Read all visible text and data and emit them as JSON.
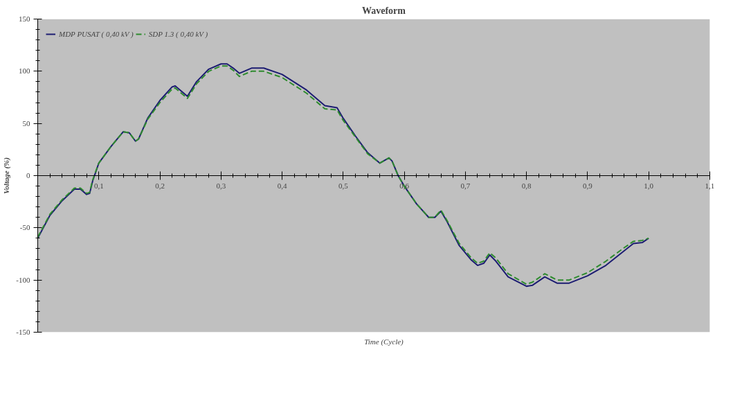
{
  "chart_data": {
    "type": "line",
    "title": "Waveform",
    "xlabel": "Time (Cycle)",
    "ylabel": "Voltage (%)",
    "x": [
      0,
      0.02,
      0.04,
      0.06,
      0.07,
      0.08,
      0.085,
      0.09,
      0.1,
      0.12,
      0.14,
      0.15,
      0.16,
      0.165,
      0.18,
      0.2,
      0.22,
      0.225,
      0.235,
      0.245,
      0.26,
      0.28,
      0.3,
      0.31,
      0.32,
      0.33,
      0.35,
      0.37,
      0.4,
      0.44,
      0.47,
      0.49,
      0.5,
      0.52,
      0.54,
      0.56,
      0.575,
      0.58,
      0.59,
      0.6,
      0.62,
      0.64,
      0.65,
      0.66,
      0.67,
      0.69,
      0.71,
      0.72,
      0.73,
      0.74,
      0.75,
      0.77,
      0.8,
      0.81,
      0.83,
      0.85,
      0.87,
      0.9,
      0.93,
      0.96,
      0.975,
      0.99,
      1.0
    ],
    "series": [
      {
        "name": "MDP PUSAT ( 0,40 kV )",
        "color": "#1c1c72",
        "line_style": "solid",
        "values": [
          -60,
          -38,
          -24,
          -13,
          -13,
          -18,
          -17,
          -5,
          12,
          28,
          42,
          41,
          33,
          35,
          55,
          72,
          85,
          86,
          81,
          76,
          90,
          102,
          107,
          107,
          103,
          98,
          103,
          103,
          97,
          82,
          67,
          65,
          55,
          38,
          22,
          12,
          17,
          14,
          0,
          -10,
          -27,
          -40,
          -40,
          -34,
          -44,
          -67,
          -81,
          -86,
          -84,
          -76,
          -82,
          -97,
          -106,
          -105,
          -97,
          -103,
          -103,
          -96,
          -86,
          -72,
          -65,
          -64,
          -60
        ]
      },
      {
        "name": "SDP 1.3 ( 0,40 kV )",
        "color": "#2e8b2e",
        "line_style": "dashed",
        "values": [
          -59,
          -37,
          -23,
          -12,
          -12,
          -17,
          -16,
          -4,
          12,
          28,
          42,
          41,
          33,
          35,
          54,
          70,
          83,
          84,
          79,
          74,
          88,
          100,
          105,
          105,
          101,
          95,
          100,
          100,
          94,
          79,
          64,
          63,
          53,
          37,
          21,
          12,
          17,
          14,
          0,
          -10,
          -27,
          -40,
          -40,
          -33,
          -43,
          -65,
          -79,
          -84,
          -82,
          -74,
          -79,
          -94,
          -104,
          -102,
          -94,
          -100,
          -100,
          -93,
          -82,
          -69,
          -63,
          -62,
          -60
        ]
      }
    ],
    "xlim": [
      0,
      1.1
    ],
    "ylim": [
      -150,
      150
    ],
    "xticks": [
      {
        "value": 0.1,
        "label": "0,1"
      },
      {
        "value": 0.2,
        "label": "0,2"
      },
      {
        "value": 0.3,
        "label": "0,3"
      },
      {
        "value": 0.4,
        "label": "0,4"
      },
      {
        "value": 0.5,
        "label": "0,5"
      },
      {
        "value": 0.6,
        "label": "0,6"
      },
      {
        "value": 0.7,
        "label": "0,7"
      },
      {
        "value": 0.8,
        "label": "0,8"
      },
      {
        "value": 0.9,
        "label": "0,9"
      },
      {
        "value": 1.0,
        "label": "1,0"
      },
      {
        "value": 1.1,
        "label": "1,1"
      }
    ],
    "yticks": [
      -150,
      -100,
      -50,
      0,
      50,
      100,
      150
    ],
    "grid": false,
    "legend": "top left",
    "marker": "none"
  }
}
